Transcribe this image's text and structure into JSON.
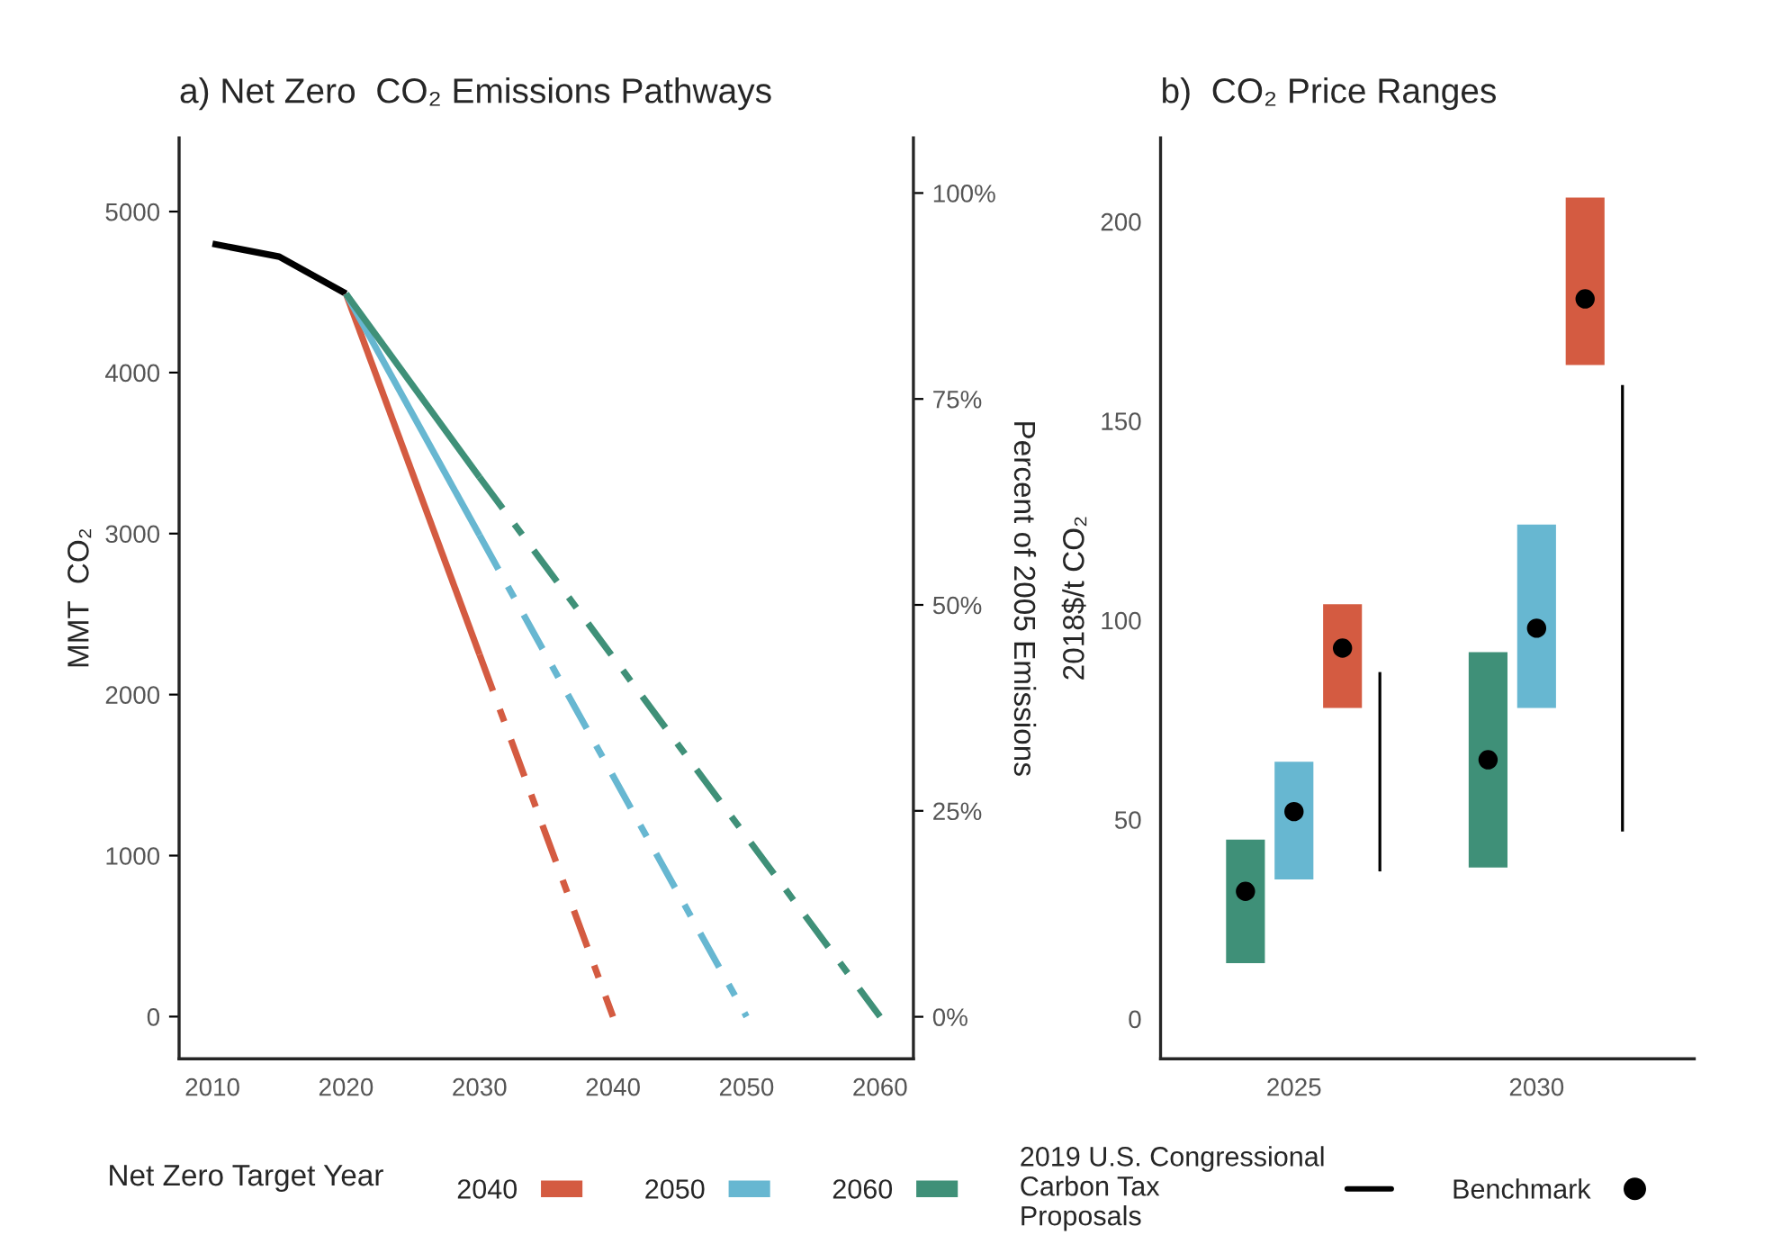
{
  "chart_data": [
    {
      "type": "line",
      "title": "a) Net Zero  CO₂ Emissions Pathways",
      "ylabel": "MMT  CO₂",
      "y2label": "Percent of 2005 Emissions",
      "xlim": [
        2007.5,
        2062.5
      ],
      "xticks": [
        2010,
        2020,
        2030,
        2040,
        2050,
        2060
      ],
      "ylim": [
        -262,
        5458
      ],
      "yticks": [
        0,
        1000,
        2000,
        3000,
        4000,
        5000
      ],
      "y2lim": [
        -5.1,
        106.7
      ],
      "y2ticks": [
        {
          "value": 0,
          "label": "0%"
        },
        {
          "value": 25,
          "label": "25%"
        },
        {
          "value": 50,
          "label": "50%"
        },
        {
          "value": 75,
          "label": "75%"
        },
        {
          "value": 100,
          "label": "100%"
        }
      ],
      "grid": false,
      "legend": false,
      "series": [
        {
          "color": "#000000",
          "x": [
            2010,
            2015,
            2020
          ],
          "values": [
            4800,
            4720,
            4490
          ],
          "line_style": "solid"
        },
        {
          "color": "#d45b41",
          "x": [
            2020,
            2030
          ],
          "values": [
            4490,
            2250
          ],
          "line_style": "solid"
        },
        {
          "color": "#d45b41",
          "x": [
            2030,
            2040
          ],
          "values": [
            2250,
            0
          ],
          "line_style": "dashed"
        },
        {
          "color": "#67b7d1",
          "x": [
            2020,
            2030
          ],
          "values": [
            4490,
            2990
          ],
          "line_style": "solid"
        },
        {
          "color": "#67b7d1",
          "x": [
            2030,
            2050
          ],
          "values": [
            2990,
            0
          ],
          "line_style": "dashed"
        },
        {
          "color": "#3f9078",
          "x": [
            2020,
            2030
          ],
          "values": [
            4490,
            3350
          ],
          "line_style": "solid"
        },
        {
          "color": "#3f9078",
          "x": [
            2030,
            2060
          ],
          "values": [
            3350,
            0
          ],
          "line_style": "dashed"
        }
      ]
    },
    {
      "type": "bar",
      "title": "b)  CO₂ Price Ranges",
      "ylabel": "2018$/t CO₂",
      "categories": [
        "2025",
        "2030"
      ],
      "ylim": [
        -10,
        221
      ],
      "yticks": [
        0,
        50,
        100,
        150,
        200
      ],
      "grid": false,
      "legend": "bottom",
      "legend_title": "Net Zero Target Year",
      "series": [
        {
          "name": "2040",
          "color": "#d45b41",
          "base": [
            78,
            164
          ],
          "values": [
            26,
            42
          ]
        },
        {
          "name": "2050",
          "color": "#67b7d1",
          "base": [
            35,
            78
          ],
          "values": [
            29.5,
            46
          ]
        },
        {
          "name": "2060",
          "color": "#3f9078",
          "base": [
            14,
            38
          ],
          "values": [
            31,
            54
          ]
        },
        {
          "name": "2019 U.S. Congressional\nCarbon Tax\nProposals",
          "color": "#000000",
          "base": [
            37,
            47
          ],
          "values": [
            50,
            112
          ]
        },
        {
          "name": "Benchmark",
          "type": "scatter",
          "marker": "circle",
          "color": "#000000",
          "values": [
            93,
            180.6
          ]
        },
        {
          "type": "scatter",
          "marker": "circle",
          "color": "#000000",
          "values": [
            52,
            98
          ]
        },
        {
          "type": "scatter",
          "marker": "circle",
          "color": "#000000",
          "values": [
            32,
            65
          ]
        }
      ]
    }
  ]
}
